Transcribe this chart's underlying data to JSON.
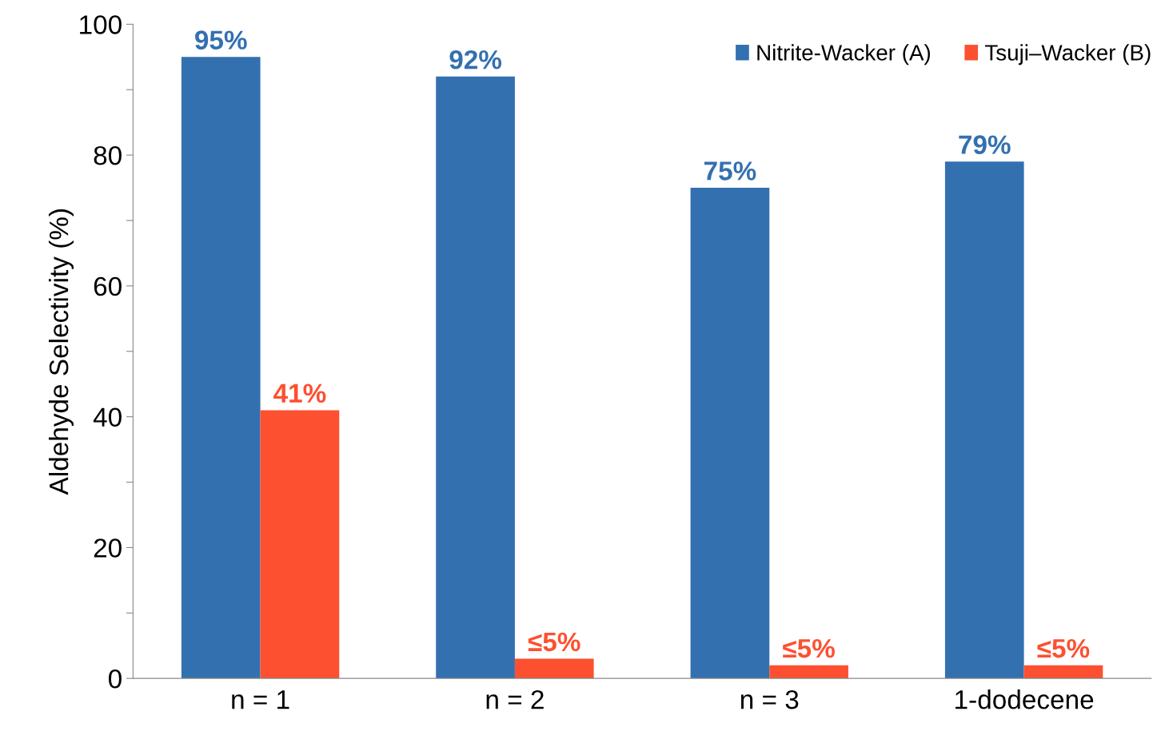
{
  "chart_data": {
    "type": "bar",
    "ylabel": "Aldehyde Selectivity (%)",
    "categories": [
      "n = 1",
      "n = 2",
      "n = 3",
      "1-dodecene"
    ],
    "series": [
      {
        "name": "Nitrite-Wacker (A)",
        "color": "#3370b0",
        "values": [
          95,
          92,
          75,
          79
        ],
        "value_labels": [
          "95%",
          "92%",
          "75%",
          "79%"
        ]
      },
      {
        "name": "Tsuji–Wacker (B)",
        "color": "#fd5030",
        "values": [
          41,
          3,
          2,
          2
        ],
        "value_labels": [
          "41%",
          "≤5%",
          "≤5%",
          "≤5%"
        ]
      }
    ],
    "ylim": [
      0,
      100
    ],
    "yticks": [
      0,
      {
        "value": 10,
        "label": null
      },
      20,
      {
        "value": 30,
        "label": null
      },
      40,
      {
        "value": 50,
        "label": null
      },
      60,
      {
        "value": 70,
        "label": null
      },
      80,
      {
        "value": 90,
        "label": null
      },
      100
    ],
    "grid": false,
    "legend": "top right"
  }
}
